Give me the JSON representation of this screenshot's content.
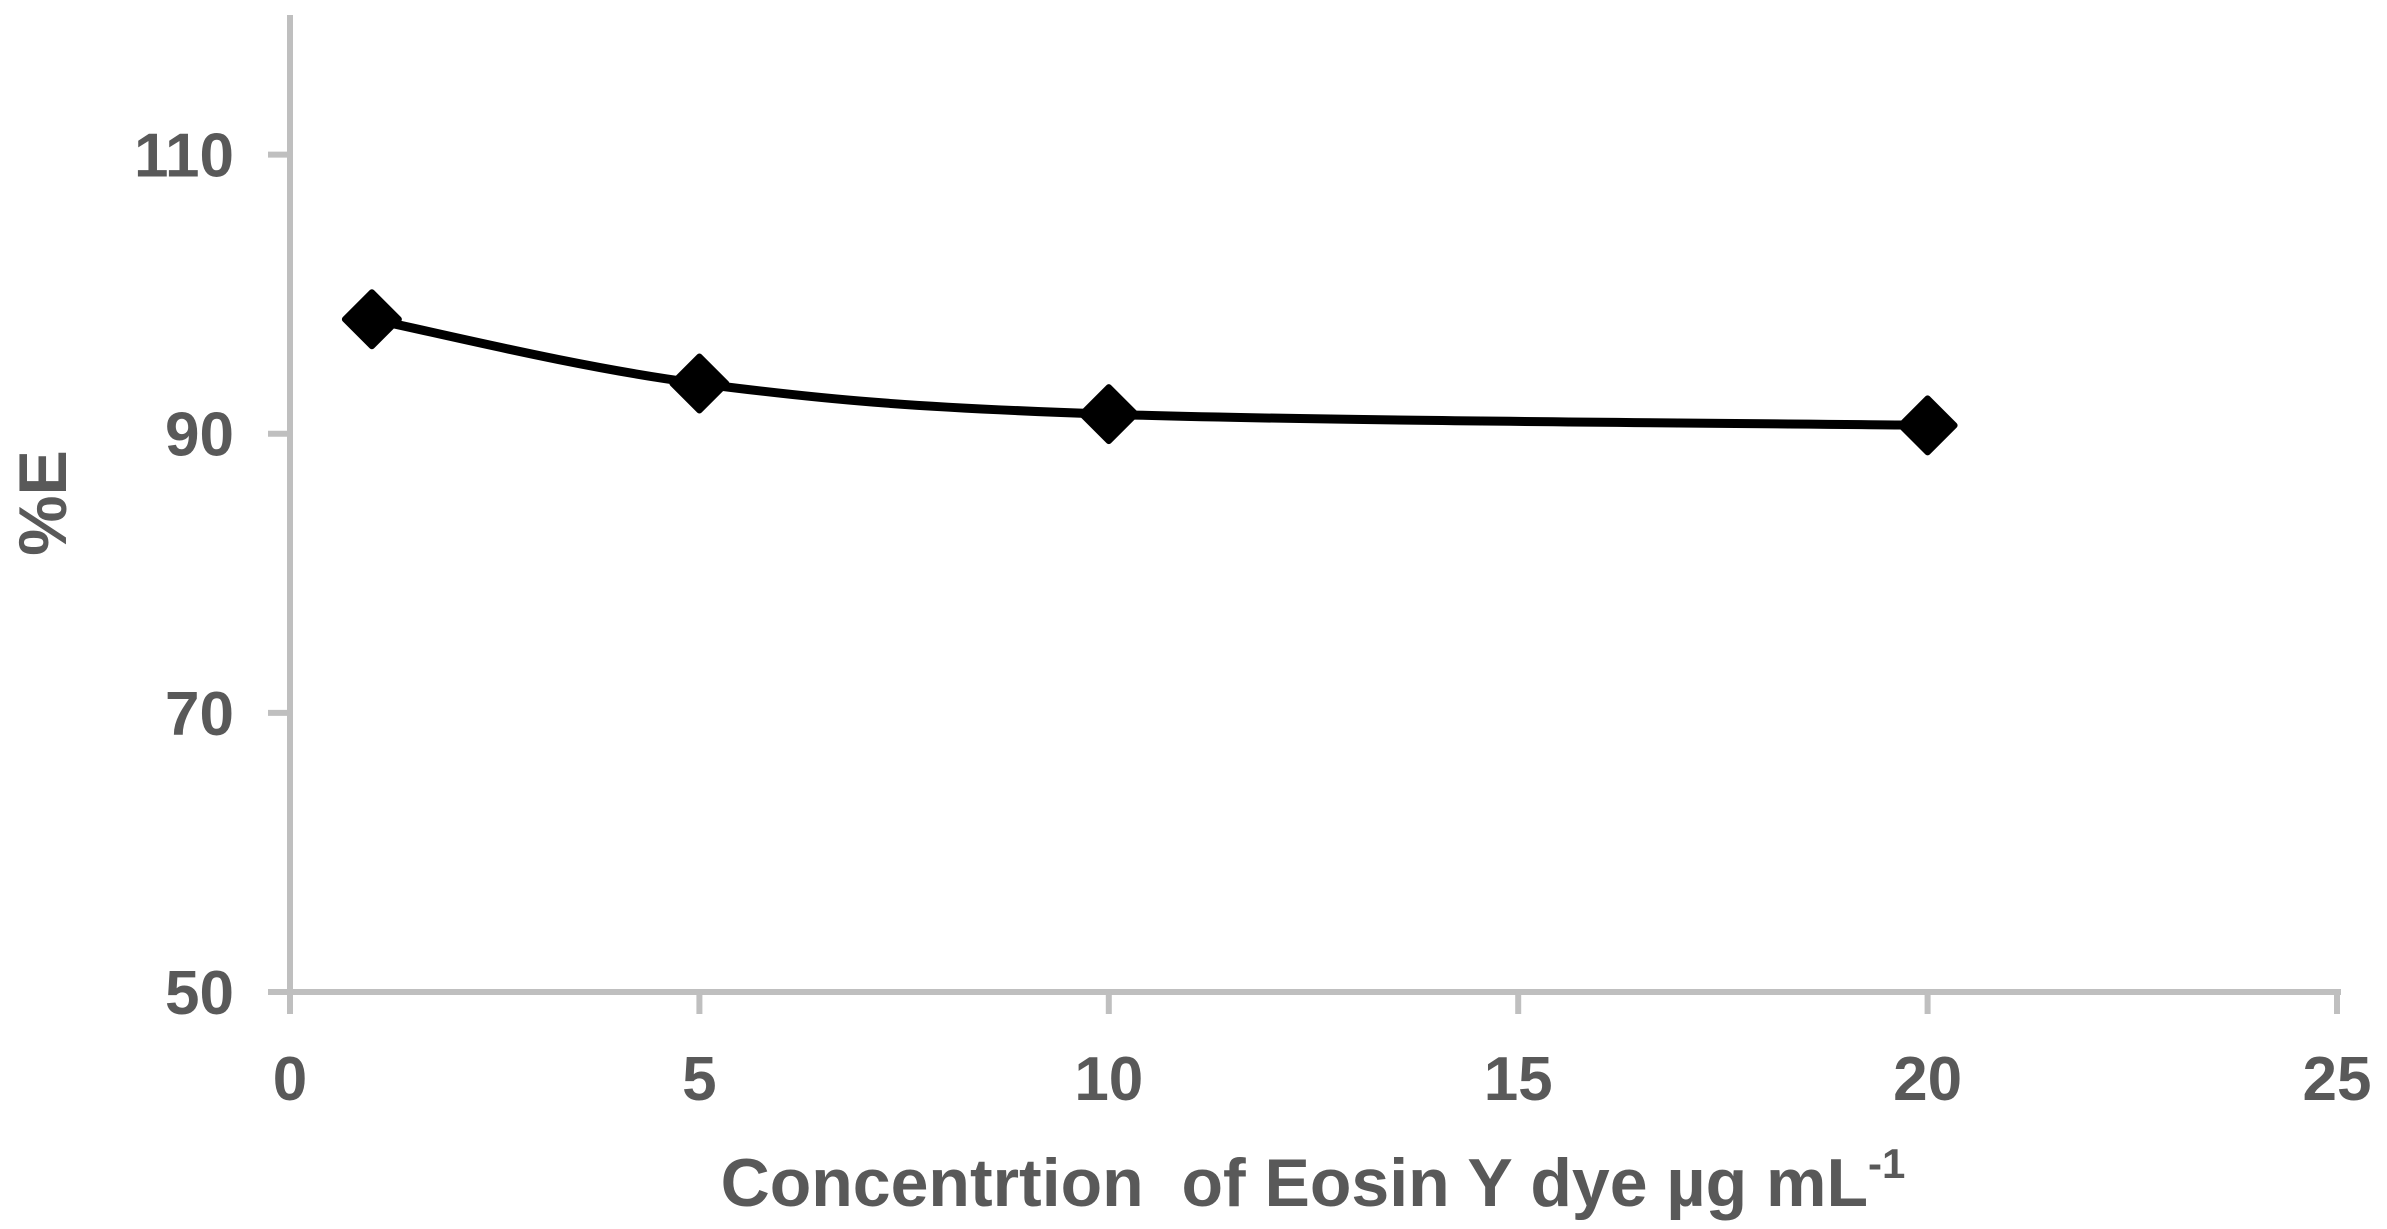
{
  "chart_data": {
    "type": "line",
    "title": "",
    "xlabel": "Concentrtion  of Eosin Y dye µg mL",
    "xlabel_superscript": "-1",
    "ylabel": "%E",
    "x": [
      1,
      5,
      10,
      20
    ],
    "y": [
      98.2,
      93.6,
      91.4,
      90.6
    ],
    "series": [
      {
        "name": "%E",
        "x": [
          1,
          5,
          10,
          20
        ],
        "values": [
          98.2,
          93.6,
          91.4,
          90.6
        ]
      }
    ],
    "x_ticks": [
      0,
      5,
      10,
      15,
      20,
      25
    ],
    "y_ticks": [
      50,
      70,
      90,
      110
    ],
    "xlim": [
      0,
      25
    ],
    "ylim": [
      50,
      120
    ],
    "grid": false,
    "legend": false,
    "marker": "diamond",
    "line_smooth": true,
    "colors": {
      "line": "#000000",
      "marker": "#000000",
      "axis": "#bfbfbf",
      "label": "#595959",
      "background": "#ffffff"
    }
  }
}
